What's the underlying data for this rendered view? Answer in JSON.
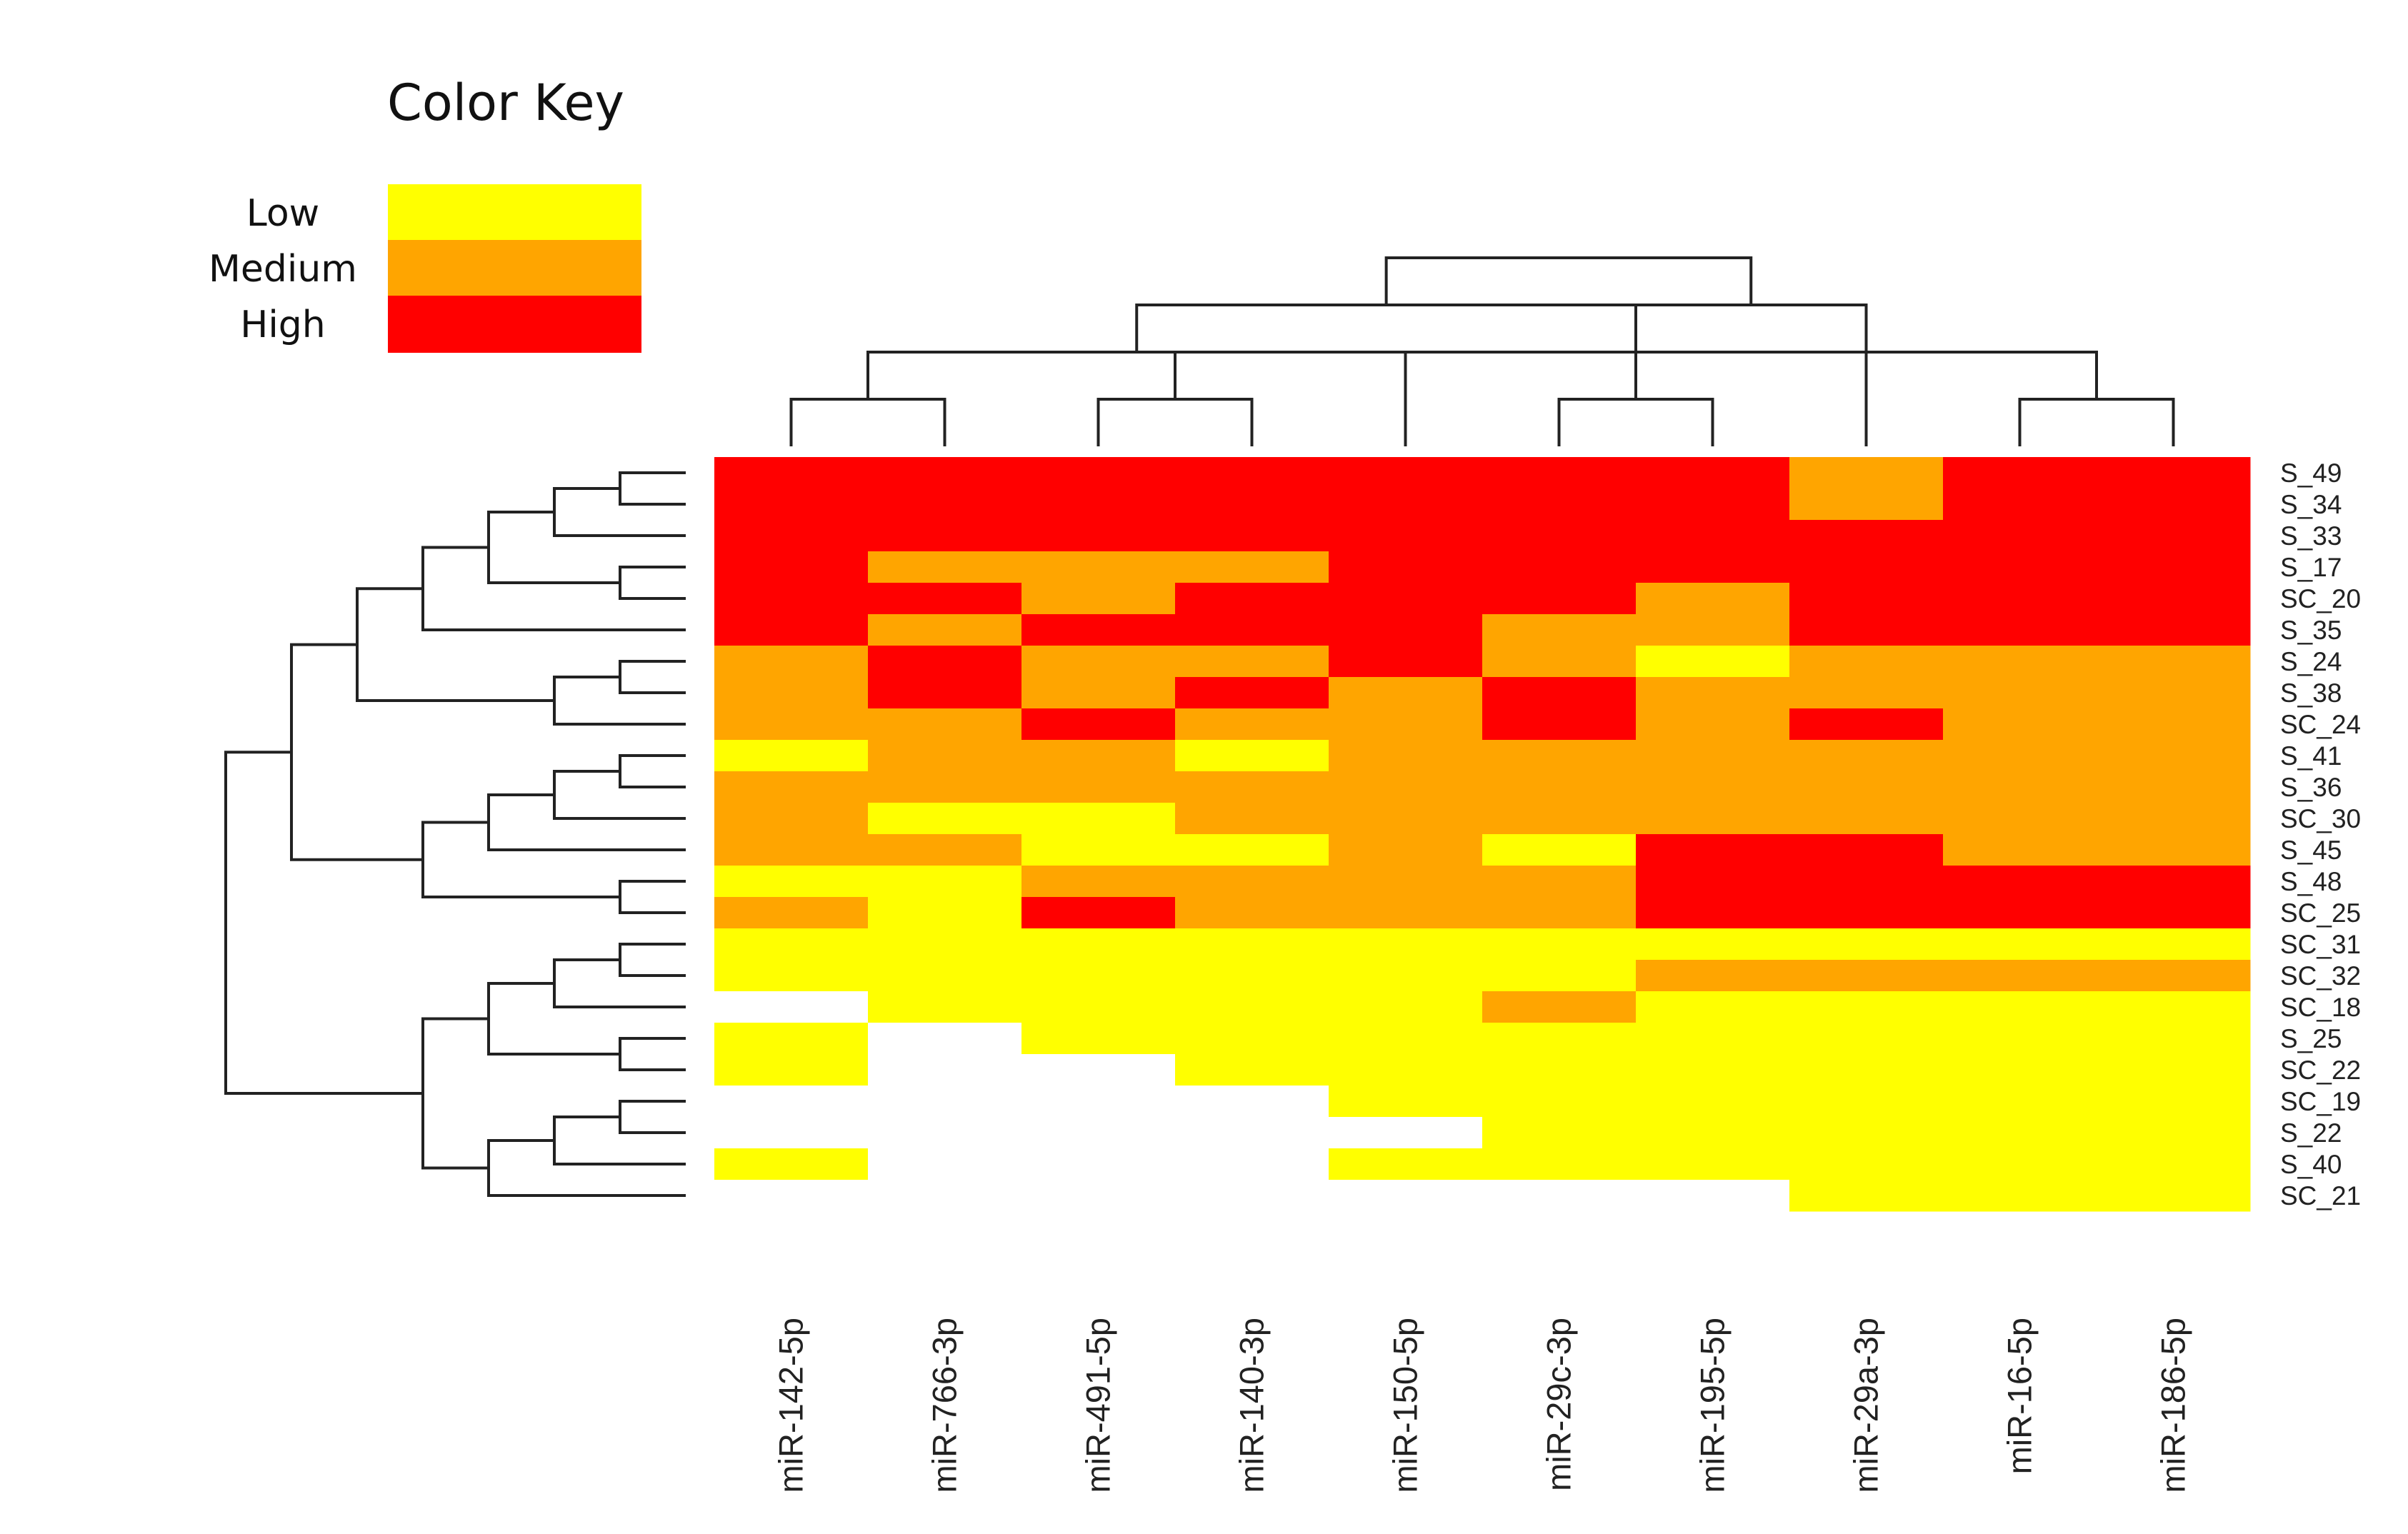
{
  "chart_data": {
    "type": "heatmap",
    "title": "",
    "legend": {
      "title": "Color Key",
      "levels": [
        {
          "label": "Low",
          "value": 1,
          "color": "#ffff00"
        },
        {
          "label": "Medium",
          "value": 2,
          "color": "#ffa500"
        },
        {
          "label": "High",
          "value": 3,
          "color": "#ff0000"
        }
      ],
      "missing_color": "#ffffff",
      "placement": "top-left"
    },
    "columns": [
      "miR-142-5p",
      "miR-766-3p",
      "miR-491-5p",
      "miR-140-3p",
      "miR-150-5p",
      "miR-29c-3p",
      "miR-195-5p",
      "miR-29a-3p",
      "miR-16-5p",
      "miR-186-5p"
    ],
    "rows": [
      "S_49",
      "S_34",
      "S_33",
      "S_17",
      "SC_20",
      "S_35",
      "S_24",
      "S_38",
      "SC_24",
      "S_41",
      "S_36",
      "SC_30",
      "S_45",
      "S_48",
      "SC_25",
      "SC_31",
      "SC_32",
      "SC_18",
      "S_25",
      "SC_22",
      "SC_19",
      "S_22",
      "S_40",
      "SC_21"
    ],
    "values": [
      [
        3,
        3,
        3,
        3,
        3,
        3,
        3,
        2,
        3,
        3
      ],
      [
        3,
        3,
        3,
        3,
        3,
        3,
        3,
        2,
        3,
        3
      ],
      [
        3,
        3,
        3,
        3,
        3,
        3,
        3,
        3,
        3,
        3
      ],
      [
        3,
        2,
        2,
        2,
        3,
        3,
        3,
        3,
        3,
        3
      ],
      [
        3,
        3,
        2,
        3,
        3,
        3,
        2,
        3,
        3,
        3
      ],
      [
        3,
        2,
        3,
        3,
        3,
        2,
        2,
        3,
        3,
        3
      ],
      [
        2,
        3,
        2,
        2,
        3,
        2,
        1,
        2,
        2,
        2
      ],
      [
        2,
        3,
        2,
        3,
        2,
        3,
        2,
        2,
        2,
        2
      ],
      [
        2,
        2,
        3,
        2,
        2,
        3,
        2,
        3,
        2,
        2
      ],
      [
        1,
        2,
        2,
        1,
        2,
        2,
        2,
        2,
        2,
        2
      ],
      [
        2,
        2,
        2,
        2,
        2,
        2,
        2,
        2,
        2,
        2
      ],
      [
        2,
        1,
        1,
        2,
        2,
        2,
        2,
        2,
        2,
        2
      ],
      [
        2,
        2,
        1,
        1,
        2,
        1,
        3,
        3,
        2,
        2
      ],
      [
        1,
        1,
        2,
        2,
        2,
        2,
        3,
        3,
        3,
        3
      ],
      [
        2,
        1,
        3,
        2,
        2,
        2,
        3,
        3,
        3,
        3
      ],
      [
        1,
        1,
        1,
        1,
        1,
        1,
        1,
        1,
        1,
        1
      ],
      [
        1,
        1,
        1,
        1,
        1,
        1,
        2,
        2,
        2,
        2
      ],
      [
        null,
        1,
        1,
        1,
        1,
        2,
        1,
        1,
        1,
        1
      ],
      [
        1,
        null,
        1,
        1,
        1,
        1,
        1,
        1,
        1,
        1
      ],
      [
        1,
        null,
        null,
        1,
        1,
        1,
        1,
        1,
        1,
        1
      ],
      [
        null,
        null,
        null,
        null,
        1,
        1,
        1,
        1,
        1,
        1
      ],
      [
        null,
        null,
        null,
        null,
        null,
        1,
        1,
        1,
        1,
        1
      ],
      [
        1,
        null,
        null,
        null,
        1,
        1,
        1,
        1,
        1,
        1
      ],
      [
        null,
        null,
        null,
        null,
        null,
        null,
        null,
        1,
        1,
        1
      ]
    ],
    "column_dendrogram": [
      [
        1,
        2
      ],
      [
        3,
        4
      ],
      [
        6,
        7
      ],
      [
        9,
        10
      ],
      [
        11,
        5
      ],
      [
        12,
        14
      ],
      [
        15,
        13
      ],
      [
        16,
        8
      ],
      [
        18,
        17
      ]
    ],
    "row_dendrogram": [
      [
        1,
        2
      ],
      [
        25,
        3
      ],
      [
        4,
        5
      ],
      [
        26,
        27
      ],
      [
        28,
        6
      ],
      [
        7,
        8
      ],
      [
        30,
        9
      ],
      [
        29,
        31
      ],
      [
        10,
        11
      ],
      [
        33,
        12
      ],
      [
        34,
        13
      ],
      [
        14,
        15
      ],
      [
        35,
        36
      ],
      [
        32,
        37
      ],
      [
        16,
        17
      ],
      [
        39,
        18
      ],
      [
        19,
        20
      ],
      [
        40,
        41
      ],
      [
        21,
        22
      ],
      [
        43,
        23
      ],
      [
        44,
        24
      ],
      [
        42,
        45
      ],
      [
        38,
        46
      ]
    ]
  }
}
